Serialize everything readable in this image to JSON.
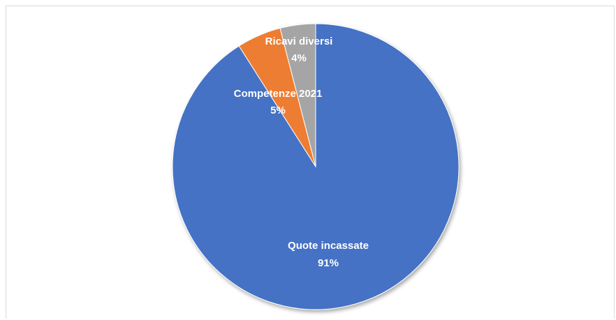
{
  "chart_data": {
    "type": "pie",
    "title": "",
    "start": "top",
    "direction": "clockwise",
    "slices": [
      {
        "label": "Quote incassate",
        "pct_label": "91%",
        "value": 91,
        "color": "#4472c4"
      },
      {
        "label": "Competenze 2021",
        "pct_label": "5%",
        "value": 5,
        "color": "#ed7d31"
      },
      {
        "label": "Ricavi diversi",
        "pct_label": "4%",
        "value": 4,
        "color": "#a5a5a5"
      }
    ]
  }
}
